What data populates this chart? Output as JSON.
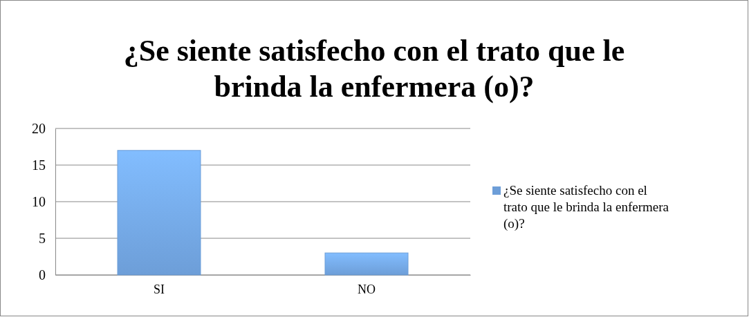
{
  "chart_data": {
    "type": "bar",
    "title": "¿Se siente satisfecho con el trato que le brinda la enfermera (o)?",
    "categories": [
      "SI",
      "NO"
    ],
    "series": [
      {
        "name": "¿Se siente satisfecho con el trato que le brinda la enfermera (o)?",
        "color": "#6d9ed8",
        "values": [
          17,
          3
        ]
      }
    ],
    "ylim": [
      0,
      20
    ],
    "yticks": [
      0,
      5,
      10,
      15,
      20
    ],
    "grid": "y",
    "legend": "right"
  }
}
